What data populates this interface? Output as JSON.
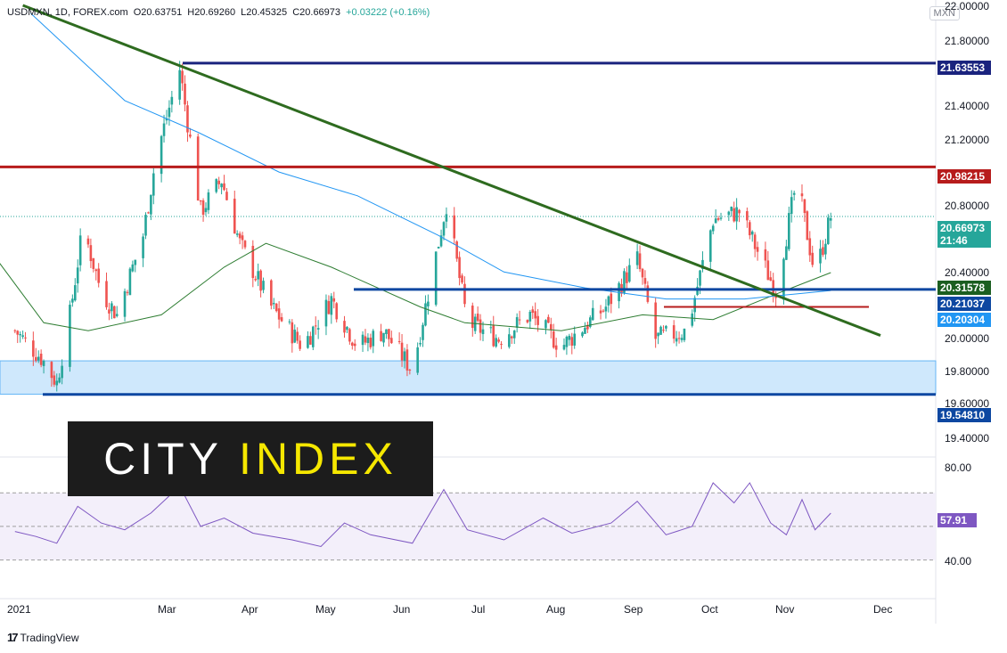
{
  "header": {
    "symbol": "USDMXN, 1D, FOREX.com",
    "open": "O20.63751",
    "high": "H20.69260",
    "low": "L20.45325",
    "close": "C20.66973",
    "change": "+0.03222 (+0.16%)"
  },
  "currency_badge": "MXN",
  "logo": {
    "part1": "CITY",
    "part2": "INDEX"
  },
  "footer": {
    "glyph": "17",
    "brand": "TradingView"
  },
  "price_axis": {
    "ticks": [
      "22.00000",
      "21.80000",
      "21.40000",
      "21.20000",
      "20.80000",
      "20.40000",
      "20.00000",
      "19.80000",
      "19.60000",
      "19.40000"
    ],
    "labels": [
      {
        "text": "21.63553",
        "color": "#1a237e"
      },
      {
        "text": "20.98215",
        "color": "#b71c1c"
      },
      {
        "text": "20.66973",
        "sub": "21:46",
        "color": "#26a69a"
      },
      {
        "text": "20.31578",
        "color": "#1b5e20"
      },
      {
        "text": "20.21037",
        "color": "#0d47a1"
      },
      {
        "text": "20.20304",
        "color": "#2196f3"
      },
      {
        "text": "19.54810",
        "color": "#0d47a1"
      }
    ]
  },
  "rsi_axis": {
    "ticks": [
      "80.00",
      "40.00"
    ],
    "value_label": "57.91",
    "value_color": "#7e57c2"
  },
  "time_axis": [
    "2021",
    "Mar",
    "Apr",
    "May",
    "Jun",
    "Jul",
    "Aug",
    "Sep",
    "Oct",
    "Nov",
    "Dec"
  ],
  "colors": {
    "up": "#26a69a",
    "down": "#ef5350",
    "ma_fast": "#2e7d32",
    "ma_slow": "#2196f3",
    "rsi": "#7e57c2"
  },
  "chart_data": {
    "type": "candlestick",
    "symbol": "USDMXN",
    "interval": "1D",
    "ylim": [
      19.3,
      22.0
    ],
    "close_path": [
      {
        "x": "2021-01-04",
        "y": 19.95
      },
      {
        "x": "2021-01-14",
        "y": 19.78
      },
      {
        "x": "2021-01-20",
        "y": 19.62
      },
      {
        "x": "2021-01-25",
        "y": 20.05
      },
      {
        "x": "2021-01-30",
        "y": 20.6
      },
      {
        "x": "2021-02-06",
        "y": 20.2
      },
      {
        "x": "2021-02-12",
        "y": 20.05
      },
      {
        "x": "2021-02-22",
        "y": 20.55
      },
      {
        "x": "2021-02-27",
        "y": 21.05
      },
      {
        "x": "2021-03-08",
        "y": 21.6
      },
      {
        "x": "2021-03-16",
        "y": 20.7
      },
      {
        "x": "2021-03-24",
        "y": 20.9
      },
      {
        "x": "2021-03-31",
        "y": 20.5
      },
      {
        "x": "2021-04-12",
        "y": 20.1
      },
      {
        "x": "2021-04-24",
        "y": 19.85
      },
      {
        "x": "2021-05-05",
        "y": 20.15
      },
      {
        "x": "2021-05-15",
        "y": 19.85
      },
      {
        "x": "2021-05-25",
        "y": 19.95
      },
      {
        "x": "2021-06-05",
        "y": 19.7
      },
      {
        "x": "2021-06-18",
        "y": 20.75
      },
      {
        "x": "2021-06-26",
        "y": 20.0
      },
      {
        "x": "2021-07-08",
        "y": 19.9
      },
      {
        "x": "2021-07-20",
        "y": 20.05
      },
      {
        "x": "2021-08-01",
        "y": 19.85
      },
      {
        "x": "2021-08-18",
        "y": 20.1
      },
      {
        "x": "2021-08-30",
        "y": 20.4
      },
      {
        "x": "2021-09-06",
        "y": 19.9
      },
      {
        "x": "2021-09-18",
        "y": 19.95
      },
      {
        "x": "2021-09-28",
        "y": 20.65
      },
      {
        "x": "2021-10-08",
        "y": 20.7
      },
      {
        "x": "2021-10-22",
        "y": 20.2
      },
      {
        "x": "2021-10-30",
        "y": 20.9
      },
      {
        "x": "2021-11-06",
        "y": 20.3
      },
      {
        "x": "2021-11-12",
        "y": 20.67
      }
    ],
    "moving_averages": [
      {
        "color": "#2e7d32",
        "last": 20.31578,
        "points": [
          {
            "x": "2020-12-28",
            "y": 20.4
          },
          {
            "x": "2021-01-15",
            "y": 20.0
          },
          {
            "x": "2021-02-01",
            "y": 19.95
          },
          {
            "x": "2021-03-01",
            "y": 20.05
          },
          {
            "x": "2021-03-25",
            "y": 20.35
          },
          {
            "x": "2021-04-10",
            "y": 20.5
          },
          {
            "x": "2021-05-05",
            "y": 20.35
          },
          {
            "x": "2021-06-08",
            "y": 20.1
          },
          {
            "x": "2021-06-25",
            "y": 20.0
          },
          {
            "x": "2021-08-01",
            "y": 19.95
          },
          {
            "x": "2021-09-01",
            "y": 20.05
          },
          {
            "x": "2021-09-28",
            "y": 20.02
          },
          {
            "x": "2021-10-25",
            "y": 20.2
          },
          {
            "x": "2021-11-12",
            "y": 20.31578
          }
        ]
      },
      {
        "color": "#2196f3",
        "last": 20.20304,
        "points": [
          {
            "x": "2021-01-10",
            "y": 21.95
          },
          {
            "x": "2021-02-15",
            "y": 21.4
          },
          {
            "x": "2021-03-15",
            "y": 21.2
          },
          {
            "x": "2021-04-15",
            "y": 20.95
          },
          {
            "x": "2021-05-15",
            "y": 20.8
          },
          {
            "x": "2021-06-15",
            "y": 20.55
          },
          {
            "x": "2021-07-10",
            "y": 20.32
          },
          {
            "x": "2021-08-10",
            "y": 20.22
          },
          {
            "x": "2021-09-10",
            "y": 20.15
          },
          {
            "x": "2021-10-10",
            "y": 20.15
          },
          {
            "x": "2021-11-12",
            "y": 20.20304
          }
        ]
      }
    ],
    "levels": [
      {
        "value": 21.63553,
        "color": "#1a237e"
      },
      {
        "value": 20.98215,
        "color": "#b71c1c"
      },
      {
        "value": 20.21037,
        "color": "#0d47a1"
      },
      {
        "value": 20.1,
        "color": "#b71c1c"
      },
      {
        "value": 19.5481,
        "color": "#0d47a1"
      }
    ],
    "support_zone": [
      19.55,
      19.76
    ],
    "trendline": [
      {
        "x": "2021-01-07",
        "y": 22.0
      },
      {
        "x": "2021-12-01",
        "y": 19.92
      }
    ],
    "last_price": 20.66973,
    "rsi": {
      "ylim": [
        25,
        85
      ],
      "bands": [
        30,
        50,
        70
      ],
      "last": 57.91,
      "points": [
        {
          "x": "2021-01-04",
          "y": 47
        },
        {
          "x": "2021-01-12",
          "y": 44
        },
        {
          "x": "2021-01-20",
          "y": 40
        },
        {
          "x": "2021-01-28",
          "y": 62
        },
        {
          "x": "2021-02-06",
          "y": 52
        },
        {
          "x": "2021-02-15",
          "y": 48
        },
        {
          "x": "2021-02-25",
          "y": 58
        },
        {
          "x": "2021-03-08",
          "y": 74
        },
        {
          "x": "2021-03-16",
          "y": 50
        },
        {
          "x": "2021-03-25",
          "y": 55
        },
        {
          "x": "2021-04-05",
          "y": 46
        },
        {
          "x": "2021-04-20",
          "y": 42
        },
        {
          "x": "2021-05-01",
          "y": 38
        },
        {
          "x": "2021-05-10",
          "y": 52
        },
        {
          "x": "2021-05-20",
          "y": 45
        },
        {
          "x": "2021-06-05",
          "y": 40
        },
        {
          "x": "2021-06-17",
          "y": 72
        },
        {
          "x": "2021-06-26",
          "y": 48
        },
        {
          "x": "2021-07-10",
          "y": 42
        },
        {
          "x": "2021-07-25",
          "y": 55
        },
        {
          "x": "2021-08-05",
          "y": 46
        },
        {
          "x": "2021-08-20",
          "y": 52
        },
        {
          "x": "2021-08-30",
          "y": 65
        },
        {
          "x": "2021-09-10",
          "y": 45
        },
        {
          "x": "2021-09-20",
          "y": 50
        },
        {
          "x": "2021-09-28",
          "y": 76
        },
        {
          "x": "2021-10-06",
          "y": 64
        },
        {
          "x": "2021-10-12",
          "y": 76
        },
        {
          "x": "2021-10-20",
          "y": 52
        },
        {
          "x": "2021-10-26",
          "y": 45
        },
        {
          "x": "2021-11-01",
          "y": 66
        },
        {
          "x": "2021-11-06",
          "y": 48
        },
        {
          "x": "2021-11-12",
          "y": 57.91
        }
      ]
    }
  }
}
